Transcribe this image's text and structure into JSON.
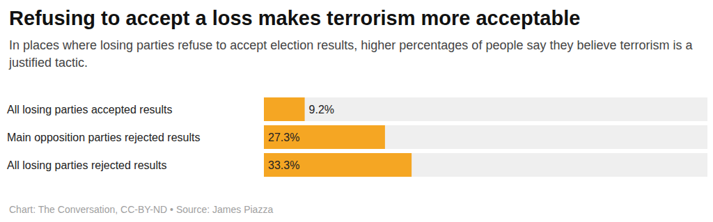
{
  "chart_data": {
    "type": "bar",
    "orientation": "horizontal",
    "title": "Refusing to accept a loss makes terrorism more acceptable",
    "subtitle": "In places where losing parties refuse to accept election results, higher percentages of people say they believe terrorism is a justified tactic.",
    "categories": [
      "All losing parties accepted results",
      "Main opposition parties rejected results",
      "All losing parties rejected results"
    ],
    "values": [
      9.2,
      27.3,
      33.3
    ],
    "value_labels": [
      "9.2%",
      "27.3%",
      "33.3%"
    ],
    "color": "#f5a623",
    "xlim": [
      0,
      100
    ],
    "data_labels": true,
    "tick_labels": "y",
    "grid": false,
    "footer": "Chart: The Conversation, CC-BY-ND • Source: James Piazza"
  }
}
